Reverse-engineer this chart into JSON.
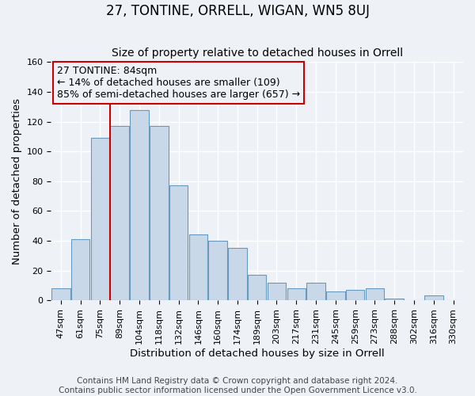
{
  "title": "27, TONTINE, ORRELL, WIGAN, WN5 8UJ",
  "subtitle": "Size of property relative to detached houses in Orrell",
  "xlabel": "Distribution of detached houses by size in Orrell",
  "ylabel": "Number of detached properties",
  "footer_lines": [
    "Contains HM Land Registry data © Crown copyright and database right 2024.",
    "Contains public sector information licensed under the Open Government Licence v3.0."
  ],
  "bar_labels": [
    "47sqm",
    "61sqm",
    "75sqm",
    "89sqm",
    "104sqm",
    "118sqm",
    "132sqm",
    "146sqm",
    "160sqm",
    "174sqm",
    "189sqm",
    "203sqm",
    "217sqm",
    "231sqm",
    "245sqm",
    "259sqm",
    "273sqm",
    "288sqm",
    "302sqm",
    "316sqm",
    "330sqm"
  ],
  "bar_values": [
    8,
    41,
    109,
    117,
    128,
    117,
    77,
    44,
    40,
    35,
    17,
    12,
    8,
    12,
    6,
    7,
    8,
    1,
    0,
    3,
    0
  ],
  "bar_color": "#c8d8e8",
  "bar_edge_color": "#6699bb",
  "marker_label": "27 TONTINE: 84sqm",
  "annotation_line1": "← 14% of detached houses are smaller (109)",
  "annotation_line2": "85% of semi-detached houses are larger (657) →",
  "marker_color": "#cc0000",
  "box_edge_color": "#cc0000",
  "ylim": [
    0,
    160
  ],
  "yticks": [
    0,
    20,
    40,
    60,
    80,
    100,
    120,
    140,
    160
  ],
  "bg_color": "#eef2f7",
  "grid_color": "#ffffff",
  "title_fontsize": 12,
  "subtitle_fontsize": 10,
  "axis_label_fontsize": 9.5,
  "tick_fontsize": 8,
  "annotation_fontsize": 9,
  "footer_fontsize": 7.5
}
